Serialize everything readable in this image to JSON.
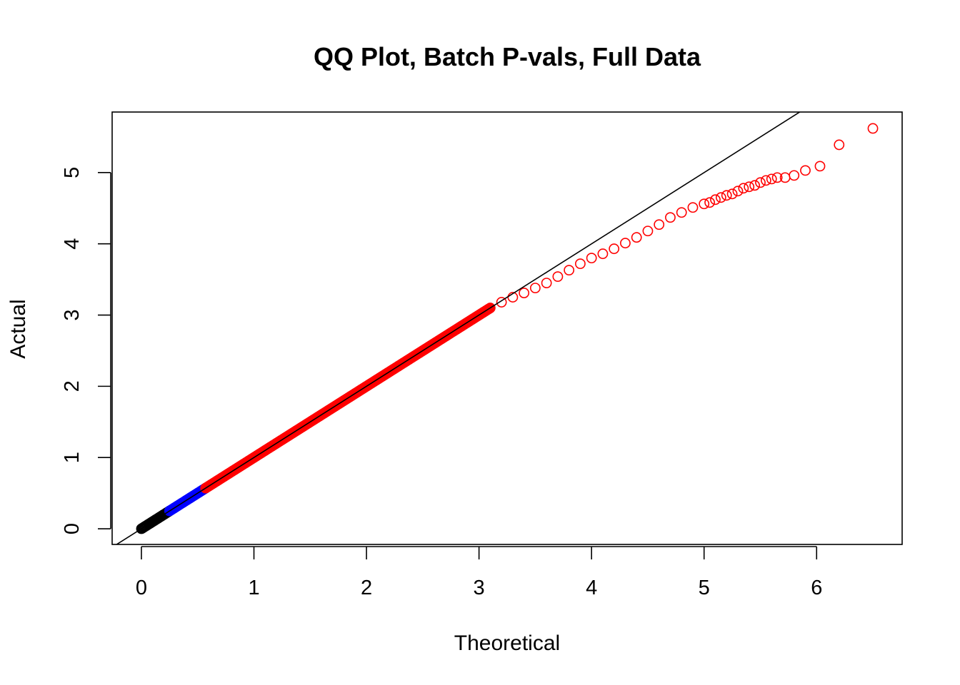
{
  "chart_data": {
    "type": "scatter",
    "title": "QQ Plot, Batch P-vals, Full Data",
    "xlabel": "Theoretical",
    "ylabel": "Actual",
    "xlim": [
      -0.26,
      6.76
    ],
    "ylim": [
      -0.22,
      5.85
    ],
    "x_ticks": [
      "0",
      "1",
      "2",
      "3",
      "4",
      "5",
      "6"
    ],
    "y_ticks": [
      "0",
      "1",
      "2",
      "3",
      "4",
      "5"
    ],
    "reference_line": {
      "slope": 1,
      "intercept": 0,
      "color": "#000000"
    },
    "colors": {
      "low": "#000000",
      "mid": "#0000ff",
      "high": "#ff0000"
    },
    "series": [
      {
        "color": "#000000",
        "dense_range": [
          [
            0,
            0
          ],
          [
            0.25,
            0.25
          ]
        ],
        "points": []
      },
      {
        "color": "#0000ff",
        "dense_range": [
          [
            0.25,
            0.25
          ],
          [
            0.57,
            0.57
          ]
        ],
        "points": []
      },
      {
        "color": "#ff0000",
        "dense_range": [
          [
            0.57,
            0.57
          ],
          [
            3.1,
            3.1
          ]
        ],
        "points": [
          [
            3.2,
            3.18
          ],
          [
            3.3,
            3.25
          ],
          [
            3.4,
            3.31
          ],
          [
            3.5,
            3.38
          ],
          [
            3.6,
            3.45
          ],
          [
            3.7,
            3.54
          ],
          [
            3.8,
            3.63
          ],
          [
            3.9,
            3.72
          ],
          [
            4.0,
            3.8
          ],
          [
            4.1,
            3.86
          ],
          [
            4.2,
            3.93
          ],
          [
            4.3,
            4.01
          ],
          [
            4.4,
            4.09
          ],
          [
            4.5,
            4.18
          ],
          [
            4.6,
            4.27
          ],
          [
            4.7,
            4.37
          ],
          [
            4.8,
            4.44
          ],
          [
            4.9,
            4.51
          ],
          [
            5.0,
            4.56
          ],
          [
            5.05,
            4.58
          ],
          [
            5.1,
            4.62
          ],
          [
            5.15,
            4.65
          ],
          [
            5.2,
            4.68
          ],
          [
            5.25,
            4.7
          ],
          [
            5.3,
            4.74
          ],
          [
            5.35,
            4.78
          ],
          [
            5.4,
            4.8
          ],
          [
            5.45,
            4.82
          ],
          [
            5.5,
            4.86
          ],
          [
            5.55,
            4.89
          ],
          [
            5.6,
            4.91
          ],
          [
            5.65,
            4.93
          ],
          [
            5.72,
            4.93
          ],
          [
            5.8,
            4.96
          ],
          [
            5.9,
            5.03
          ],
          [
            6.03,
            5.09
          ],
          [
            6.2,
            5.39
          ],
          [
            6.5,
            5.62
          ]
        ]
      }
    ]
  }
}
